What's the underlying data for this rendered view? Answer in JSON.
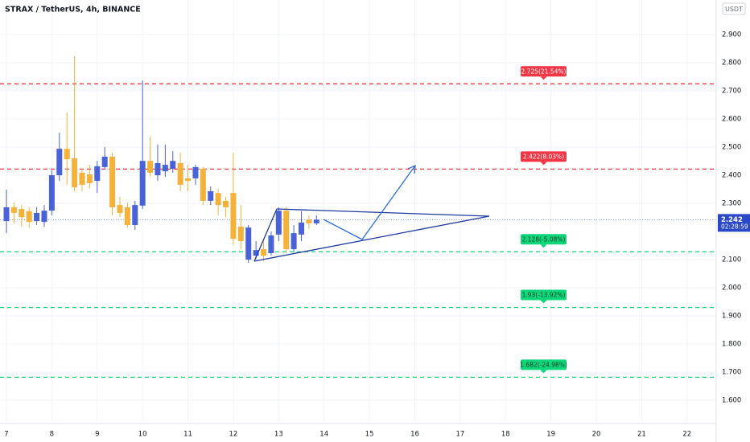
{
  "chart_data": {
    "type": "candlestick",
    "title": "STRAX / TetherUS, 4h, BINANCE",
    "currency": "USDT",
    "up_color": "#4a62d8",
    "down_color": "#f5b23a",
    "x": [
      7,
      7.1667,
      7.3333,
      7.5,
      7.6667,
      7.8333,
      8,
      8.1667,
      8.3333,
      8.5,
      8.6667,
      8.8333,
      9,
      9.1667,
      9.3333,
      9.5,
      9.6667,
      9.8333,
      10,
      10.1667,
      10.3333,
      10.5,
      10.6667,
      10.8333,
      11,
      11.1667,
      11.3333,
      11.5,
      11.6667,
      11.8333,
      12,
      12.1667,
      12.3333,
      12.5,
      12.6667,
      12.8333,
      13,
      13.1667,
      13.3333,
      13.5,
      13.6667,
      13.8333
    ],
    "open": [
      2.237,
      2.286,
      2.28,
      2.272,
      2.237,
      2.234,
      2.274,
      2.4,
      2.494,
      2.46,
      2.409,
      2.403,
      2.38,
      2.429,
      2.466,
      2.294,
      2.286,
      2.223,
      2.292,
      2.451,
      2.4,
      2.414,
      2.423,
      2.443,
      2.389,
      2.389,
      2.423,
      2.309,
      2.337,
      2.309,
      2.337,
      2.217,
      2.1,
      2.114,
      2.137,
      2.123,
      2.189,
      2.274,
      2.137,
      2.189,
      2.242,
      2.229
    ],
    "high": [
      2.349,
      2.303,
      2.294,
      2.286,
      2.286,
      2.294,
      2.417,
      2.551,
      2.623,
      2.823,
      2.423,
      2.437,
      2.451,
      2.5,
      2.48,
      2.323,
      2.303,
      2.309,
      2.737,
      2.537,
      2.509,
      2.509,
      2.486,
      2.48,
      2.437,
      2.437,
      2.429,
      2.36,
      2.352,
      2.323,
      2.48,
      2.294,
      2.223,
      2.166,
      2.172,
      2.2,
      2.286,
      2.286,
      2.223,
      2.272,
      2.257,
      2.257
    ],
    "low": [
      2.194,
      2.229,
      2.217,
      2.214,
      2.223,
      2.217,
      2.257,
      2.38,
      2.366,
      2.343,
      2.343,
      2.352,
      2.337,
      2.423,
      2.257,
      2.251,
      2.214,
      2.206,
      2.28,
      2.394,
      2.38,
      2.394,
      2.409,
      2.343,
      2.343,
      2.366,
      2.294,
      2.294,
      2.257,
      2.251,
      2.152,
      2.137,
      2.089,
      2.103,
      2.094,
      2.114,
      2.166,
      2.123,
      2.129,
      2.166,
      2.209,
      2.223
    ],
    "close": [
      2.286,
      2.266,
      2.251,
      2.234,
      2.266,
      2.274,
      2.4,
      2.494,
      2.457,
      2.357,
      2.366,
      2.372,
      2.432,
      2.466,
      2.286,
      2.266,
      2.223,
      2.294,
      2.451,
      2.409,
      2.443,
      2.437,
      2.451,
      2.366,
      2.38,
      2.429,
      2.309,
      2.343,
      2.294,
      2.286,
      2.174,
      2.166,
      2.214,
      2.134,
      2.114,
      2.186,
      2.274,
      2.137,
      2.194,
      2.232,
      2.229,
      2.242
    ],
    "xlim": [
      6.858,
      22.642
    ],
    "xticks": [
      7,
      8,
      9,
      10,
      11,
      12,
      13,
      14,
      15,
      16,
      17,
      18,
      19,
      20,
      21,
      22
    ],
    "ylim": [
      1.523,
      3.023
    ],
    "yticks": [
      {
        "value": 1.6,
        "label": "1.600"
      },
      {
        "value": 1.7,
        "label": "1.700"
      },
      {
        "value": 1.8,
        "label": "1.800"
      },
      {
        "value": 1.9,
        "label": "1.900"
      },
      {
        "value": 2.0,
        "label": "2.000"
      },
      {
        "value": 2.1,
        "label": "2.100"
      },
      {
        "value": 2.3,
        "label": "2.300"
      },
      {
        "value": 2.4,
        "label": "2.400"
      },
      {
        "value": 2.5,
        "label": "2.500"
      },
      {
        "value": 2.6,
        "label": "2.600"
      },
      {
        "value": 2.7,
        "label": "2.700"
      },
      {
        "value": 2.8,
        "label": "2.800"
      },
      {
        "value": 2.9,
        "label": "2.900"
      }
    ],
    "grid": true,
    "last_price": {
      "value": 2.242,
      "label": "2.242",
      "countdown": "02:28:59",
      "color": "#2a48c8"
    },
    "levels": [
      {
        "value": 2.725,
        "label": "2.725(21.54%)",
        "color": "#f23645"
      },
      {
        "value": 2.422,
        "label": "2.422(8.03%)",
        "color": "#f23645"
      },
      {
        "value": 2.128,
        "label": "2.128(-5.08%)",
        "color": "#0ed67a"
      },
      {
        "value": 1.93,
        "label": "1.93(-13.92%)",
        "color": "#0ed67a"
      },
      {
        "value": 1.682,
        "label": "1.682(-24.98%)",
        "color": "#0ed67a"
      }
    ]
  }
}
